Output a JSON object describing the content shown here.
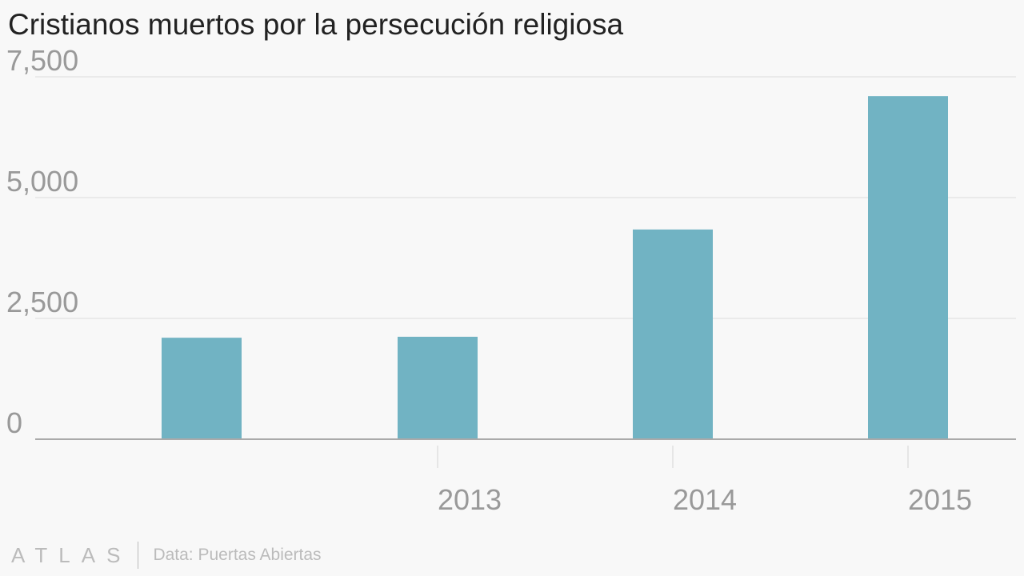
{
  "chart_data": {
    "type": "bar",
    "title": "Cristianos muertos por la persecución religiosa",
    "xlabel": "",
    "ylabel": "",
    "categories": [
      "",
      "2013",
      "2014",
      "2015"
    ],
    "values": [
      2100,
      2120,
      4340,
      7100
    ],
    "ylim": [
      0,
      7500
    ],
    "yticks": [
      0,
      2500,
      5000,
      7500
    ],
    "ytick_labels": [
      "0",
      "2,500",
      "5,000",
      "7,500"
    ],
    "grid": true,
    "bar_color": "#71b3c3",
    "gridline_color": "#e6e6e6",
    "axis_color": "#aaaaaa"
  },
  "footer": {
    "logo": "ATLAS",
    "source": "Data: Puertas Abiertas"
  }
}
